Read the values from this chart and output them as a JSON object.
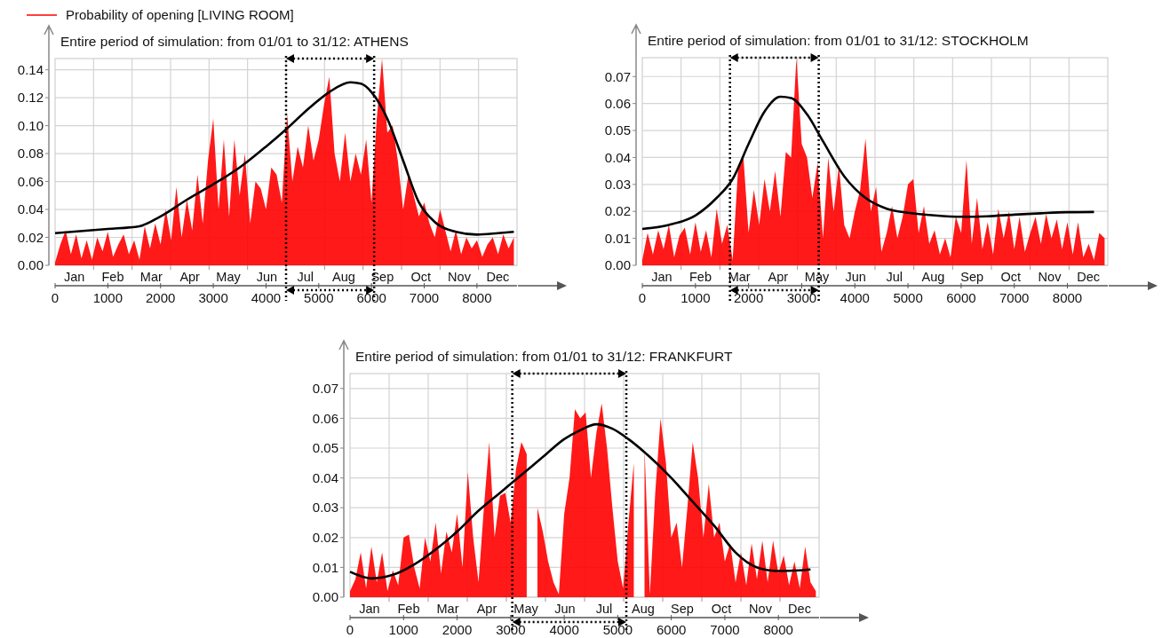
{
  "chart_data": [
    {
      "type": "area",
      "title": "Entire period of simulation: from 01/01 to 31/12: ATHENS",
      "legend": "top left",
      "grid": true,
      "xlim": [
        0,
        8760
      ],
      "xticks": [
        0,
        1000,
        2000,
        3000,
        4000,
        5000,
        6000,
        7000,
        8000
      ],
      "annotations": [
        "Jan",
        "Feb",
        "Mar",
        "Apr",
        "May",
        "Jun",
        "Jul",
        "Aug",
        "Sep",
        "Oct",
        "Nov",
        "Dec"
      ],
      "ylim": [
        0,
        0.148
      ],
      "yticks": [
        {
          "value": 0,
          "label": "0.00"
        },
        {
          "value": 0.02,
          "label": "0.02"
        },
        {
          "value": 0.04,
          "label": "0.04"
        },
        {
          "value": 0.06,
          "label": "0.06"
        },
        {
          "value": 0.08,
          "label": "0.08"
        },
        {
          "value": 0.1,
          "label": "0.10"
        },
        {
          "value": 0.12,
          "label": "0.12"
        },
        {
          "value": 0.14,
          "label": "0.14"
        }
      ],
      "ref_lines": [
        {
          "axis": "x",
          "value": 4380,
          "color": "#000000",
          "line_style": "dotted"
        },
        {
          "axis": "x",
          "value": 6050,
          "color": "#000000",
          "line_style": "dotted"
        }
      ],
      "series": [
        {
          "name": "Probability of opening [LIVING ROOM]",
          "color": "#ff0000",
          "x": [
            0,
            100,
            200,
            300,
            400,
            500,
            600,
            700,
            800,
            900,
            1000,
            1100,
            1200,
            1300,
            1400,
            1500,
            1600,
            1700,
            1800,
            1900,
            2000,
            2100,
            2200,
            2300,
            2400,
            2500,
            2600,
            2700,
            2800,
            2900,
            3000,
            3100,
            3200,
            3300,
            3400,
            3500,
            3600,
            3700,
            3800,
            3900,
            4000,
            4100,
            4200,
            4300,
            4400,
            4500,
            4600,
            4700,
            4800,
            4900,
            5000,
            5100,
            5200,
            5300,
            5400,
            5500,
            5600,
            5700,
            5800,
            5900,
            6000,
            6100,
            6200,
            6300,
            6400,
            6500,
            6600,
            6700,
            6800,
            6900,
            7000,
            7100,
            7200,
            7300,
            7400,
            7500,
            7600,
            7700,
            7800,
            7900,
            8000,
            8100,
            8200,
            8300,
            8400,
            8500,
            8600,
            8700
          ],
          "values": [
            0.002,
            0.015,
            0.025,
            0.008,
            0.022,
            0.005,
            0.018,
            0.004,
            0.02,
            0.01,
            0.024,
            0.006,
            0.015,
            0.022,
            0.008,
            0.018,
            0.004,
            0.028,
            0.012,
            0.03,
            0.015,
            0.04,
            0.018,
            0.056,
            0.02,
            0.047,
            0.025,
            0.065,
            0.03,
            0.075,
            0.105,
            0.04,
            0.09,
            0.035,
            0.09,
            0.05,
            0.08,
            0.03,
            0.06,
            0.055,
            0.04,
            0.07,
            0.065,
            0.045,
            0.108,
            0.06,
            0.085,
            0.07,
            0.1,
            0.075,
            0.09,
            0.115,
            0.135,
            0.08,
            0.06,
            0.095,
            0.06,
            0.08,
            0.065,
            0.09,
            0.045,
            0.105,
            0.148,
            0.095,
            0.1,
            0.075,
            0.04,
            0.065,
            0.05,
            0.035,
            0.045,
            0.03,
            0.02,
            0.04,
            0.025,
            0.01,
            0.025,
            0.008,
            0.02,
            0.012,
            0.018,
            0.006,
            0.015,
            0.02,
            0.008,
            0.022,
            0.012,
            0.02
          ]
        },
        {
          "type": "line",
          "color": "#000000",
          "x": [
            0,
            1000,
            1600,
            2000,
            2500,
            3000,
            3500,
            4000,
            4400,
            4800,
            5200,
            5600,
            5800,
            6000,
            6300,
            6600,
            6900,
            7200,
            7600,
            8000,
            8400,
            8700
          ],
          "values": [
            0.023,
            0.026,
            0.028,
            0.035,
            0.047,
            0.058,
            0.07,
            0.085,
            0.098,
            0.112,
            0.124,
            0.131,
            0.13,
            0.124,
            0.105,
            0.075,
            0.045,
            0.031,
            0.024,
            0.022,
            0.023,
            0.024
          ]
        }
      ]
    },
    {
      "type": "area",
      "title": "Entire period of simulation: from 01/01 to 31/12: STOCKHOLM",
      "grid": true,
      "xlim": [
        0,
        8760
      ],
      "xticks": [
        0,
        1000,
        2000,
        3000,
        4000,
        5000,
        6000,
        7000,
        8000
      ],
      "annotations": [
        "Jan",
        "Feb",
        "Mar",
        "Apr",
        "May",
        "Jun",
        "Jul",
        "Aug",
        "Sep",
        "Oct",
        "Nov",
        "Dec"
      ],
      "ylim": [
        0,
        0.077
      ],
      "yticks": [
        {
          "value": 0,
          "label": "0.00"
        },
        {
          "value": 0.01,
          "label": "0.01"
        },
        {
          "value": 0.02,
          "label": "0.02"
        },
        {
          "value": 0.03,
          "label": "0.03"
        },
        {
          "value": 0.04,
          "label": "0.04"
        },
        {
          "value": 0.05,
          "label": "0.05"
        },
        {
          "value": 0.06,
          "label": "0.06"
        },
        {
          "value": 0.07,
          "label": "0.07"
        }
      ],
      "ref_lines": [
        {
          "axis": "x",
          "value": 1650,
          "color": "#000000",
          "line_style": "dotted"
        },
        {
          "axis": "x",
          "value": 3320,
          "color": "#000000",
          "line_style": "dotted"
        }
      ],
      "series": [
        {
          "color": "#ff0000",
          "x": [
            0,
            100,
            200,
            300,
            400,
            500,
            600,
            700,
            800,
            900,
            1000,
            1100,
            1200,
            1300,
            1400,
            1500,
            1600,
            1700,
            1800,
            1900,
            2000,
            2100,
            2200,
            2300,
            2400,
            2500,
            2600,
            2700,
            2800,
            2900,
            3000,
            3100,
            3200,
            3300,
            3400,
            3500,
            3600,
            3700,
            3800,
            3900,
            4000,
            4100,
            4200,
            4300,
            4400,
            4500,
            4600,
            4700,
            4800,
            4900,
            5000,
            5100,
            5200,
            5300,
            5400,
            5500,
            5600,
            5700,
            5800,
            5900,
            6000,
            6100,
            6200,
            6300,
            6400,
            6500,
            6600,
            6700,
            6800,
            6900,
            7000,
            7100,
            7200,
            7300,
            7400,
            7500,
            7600,
            7700,
            7800,
            7900,
            8000,
            8100,
            8200,
            8300,
            8400,
            8500,
            8600,
            8700
          ],
          "values": [
            0.002,
            0.012,
            0.004,
            0.013,
            0.006,
            0.015,
            0.003,
            0.011,
            0.014,
            0.004,
            0.016,
            0.005,
            0.013,
            0.003,
            0.021,
            0.008,
            0.015,
            0.002,
            0.035,
            0.041,
            0.012,
            0.028,
            0.015,
            0.032,
            0.02,
            0.035,
            0.018,
            0.042,
            0.04,
            0.077,
            0.045,
            0.04,
            0.025,
            0.038,
            0.01,
            0.04,
            0.02,
            0.037,
            0.015,
            0.01,
            0.02,
            0.028,
            0.047,
            0.02,
            0.029,
            0.005,
            0.012,
            0.022,
            0.01,
            0.018,
            0.03,
            0.032,
            0.012,
            0.022,
            0.008,
            0.013,
            0.004,
            0.01,
            0.003,
            0.018,
            0.012,
            0.039,
            0.008,
            0.025,
            0.006,
            0.016,
            0.004,
            0.021,
            0.01,
            0.02,
            0.006,
            0.018,
            0.005,
            0.012,
            0.018,
            0.008,
            0.019,
            0.01,
            0.017,
            0.006,
            0.016,
            0.004,
            0.016,
            0.003,
            0.008,
            0.002,
            0.012,
            0.01
          ]
        },
        {
          "type": "line",
          "color": "#000000",
          "x": [
            0,
            500,
            1000,
            1400,
            1700,
            2000,
            2300,
            2600,
            2800,
            3100,
            3400,
            3800,
            4200,
            4600,
            5000,
            5500,
            6000,
            6500,
            7000,
            7500,
            8000,
            8500
          ],
          "values": [
            0.0135,
            0.015,
            0.0185,
            0.025,
            0.032,
            0.045,
            0.057,
            0.0625,
            0.062,
            0.056,
            0.046,
            0.033,
            0.025,
            0.021,
            0.0195,
            0.0185,
            0.018,
            0.0182,
            0.0188,
            0.0193,
            0.0197,
            0.0198
          ]
        }
      ]
    },
    {
      "type": "area",
      "title": "Entire period of simulation: from 01/01 to 31/12: FRANKFURT",
      "grid": true,
      "xlim": [
        0,
        8760
      ],
      "xticks": [
        0,
        1000,
        2000,
        3000,
        4000,
        5000,
        6000,
        7000,
        8000
      ],
      "annotations": [
        "Jan",
        "Feb",
        "Mar",
        "Apr",
        "May",
        "Jun",
        "Jul",
        "Aug",
        "Sep",
        "Oct",
        "Nov",
        "Dec"
      ],
      "ylim": [
        0,
        0.075
      ],
      "yticks": [
        {
          "value": 0,
          "label": "0.00"
        },
        {
          "value": 0.01,
          "label": "0.01"
        },
        {
          "value": 0.02,
          "label": "0.02"
        },
        {
          "value": 0.03,
          "label": "0.03"
        },
        {
          "value": 0.04,
          "label": "0.04"
        },
        {
          "value": 0.05,
          "label": "0.05"
        },
        {
          "value": 0.06,
          "label": "0.06"
        },
        {
          "value": 0.07,
          "label": "0.07"
        }
      ],
      "ref_lines": [
        {
          "axis": "x",
          "value": 3030,
          "color": "#000000",
          "line_style": "dotted"
        },
        {
          "axis": "x",
          "value": 5160,
          "color": "#000000",
          "line_style": "dotted"
        }
      ],
      "series": [
        {
          "color": "#ff0000",
          "x": [
            0,
            100,
            200,
            300,
            400,
            500,
            600,
            700,
            800,
            900,
            1000,
            1100,
            1200,
            1300,
            1400,
            1500,
            1600,
            1700,
            1800,
            1900,
            2000,
            2100,
            2200,
            2300,
            2400,
            2500,
            2600,
            2700,
            2800,
            2900,
            3000,
            3100,
            3200,
            3300,
            3400,
            3500,
            3600,
            3700,
            3800,
            3900,
            4000,
            4100,
            4200,
            4300,
            4400,
            4500,
            4600,
            4700,
            4800,
            4900,
            5000,
            5100,
            5200,
            5300,
            5400,
            5500,
            5600,
            5700,
            5800,
            5900,
            6000,
            6100,
            6200,
            6300,
            6400,
            6500,
            6600,
            6700,
            6800,
            6900,
            7000,
            7100,
            7200,
            7300,
            7400,
            7500,
            7600,
            7700,
            7800,
            7900,
            8000,
            8100,
            8200,
            8300,
            8400,
            8500,
            8600,
            8700
          ],
          "values": [
            0.002,
            0.006,
            0.015,
            0.003,
            0.017,
            0.005,
            0.015,
            0.002,
            0.009,
            0.004,
            0.02,
            0.021,
            0.01,
            0.003,
            0.02,
            0.012,
            0.025,
            0.008,
            0.022,
            0.015,
            0.028,
            0.01,
            0.042,
            0.02,
            0.005,
            0.03,
            0.052,
            0.02,
            0.034,
            0.035,
            0.025,
            0.043,
            0.052,
            0.048,
            null,
            0.03,
            0.022,
            0.012,
            0.005,
            0.001,
            0.028,
            0.04,
            0.063,
            0.06,
            0.062,
            0.04,
            0.055,
            0.065,
            0.05,
            0.03,
            0.012,
            0.003,
            0.025,
            0.045,
            null,
            0.05,
            0.001,
            0.035,
            0.06,
            0.045,
            0.02,
            0.025,
            0.01,
            0.03,
            0.052,
            0.04,
            0.02,
            0.038,
            0.02,
            0.025,
            0.012,
            0.018,
            0.005,
            0.015,
            0.004,
            0.018,
            0.006,
            0.019,
            0.005,
            0.019,
            0.008,
            0.014,
            0.004,
            0.012,
            0.003,
            0.017,
            0.005,
            0.002
          ]
        },
        {
          "type": "line",
          "color": "#000000",
          "x": [
            0,
            400,
            800,
            1200,
            1600,
            2000,
            2400,
            2800,
            3200,
            3600,
            4000,
            4300,
            4600,
            4900,
            5200,
            5600,
            6000,
            6400,
            6800,
            7200,
            7600,
            8000,
            8400,
            8600
          ],
          "values": [
            0.0085,
            0.0063,
            0.0075,
            0.011,
            0.016,
            0.022,
            0.029,
            0.035,
            0.041,
            0.047,
            0.053,
            0.056,
            0.058,
            0.0565,
            0.053,
            0.047,
            0.04,
            0.032,
            0.024,
            0.015,
            0.01,
            0.0088,
            0.009,
            0.0093
          ]
        }
      ]
    }
  ]
}
